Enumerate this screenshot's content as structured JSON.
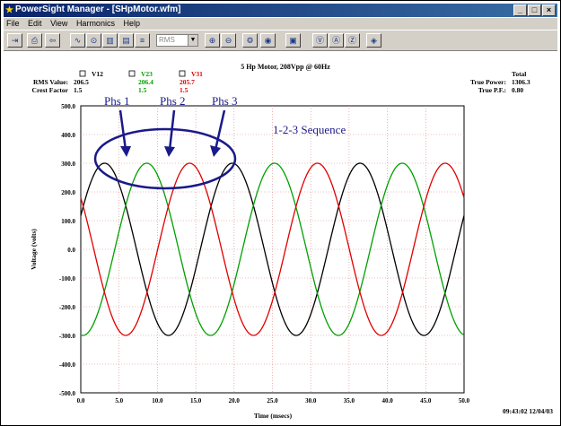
{
  "window": {
    "title": "PowerSight Manager - [SHpMotor.wfm]",
    "min": "_",
    "max": "□",
    "close": "×"
  },
  "menu": [
    "File",
    "Edit",
    "View",
    "Harmonics",
    "Help"
  ],
  "toolbar": {
    "icons": [
      "exit-icon",
      "print-icon",
      "back-arrow-icon",
      "waveform-icon",
      "phasor-icon",
      "bar-chart-icon",
      "report-icon",
      "zoom-in-icon",
      "zoom-out-icon",
      "settings-icon",
      "dial-icon",
      "save-icon",
      "v-channel-icon",
      "a-channel-icon",
      "va-channel-icon",
      "eraser-icon"
    ],
    "select_value": "RMS"
  },
  "stats": {
    "rms_label": "RMS Value:",
    "crest_label": "Crest Factor",
    "channels": [
      {
        "name": "V12",
        "rms": "206.5",
        "crest": "1.5",
        "color": "#000000"
      },
      {
        "name": "V23",
        "rms": "206.4",
        "crest": "1.5",
        "color": "#00a000"
      },
      {
        "name": "V31",
        "rms": "205.7",
        "crest": "1.5",
        "color": "#e00000"
      }
    ],
    "total_label": "Total",
    "true_power_label": "True Power:",
    "true_power_value": "1306.3",
    "true_pf_label": "True P.F.:",
    "true_pf_value": "0.80"
  },
  "annotations": {
    "phs1": "Phs 1",
    "phs2": "Phs 2",
    "phs3": "Phs 3",
    "sequence": "1-2-3 Sequence",
    "annotation_color": "#1a1a8a"
  },
  "footer": {
    "timestamp": "09:43:02 12/04/03"
  },
  "chart_data": {
    "type": "line",
    "title": "5 Hp Motor, 208Vpp @ 60Hz",
    "xlabel": "Time (msecs)",
    "ylabel": "Voltage (volts)",
    "xlim": [
      0,
      50
    ],
    "ylim": [
      -500,
      500
    ],
    "xticks": [
      "0.0",
      "5.0",
      "10.0",
      "15.0",
      "20.0",
      "25.0",
      "30.0",
      "35.0",
      "40.0",
      "45.0",
      "50.0"
    ],
    "yticks": [
      "500.0",
      "400.0",
      "300.0",
      "200.0",
      "100.0",
      "0.0",
      "-100.0",
      "-200.0",
      "-300.0",
      "-400.0",
      "-500.0"
    ],
    "grid": true,
    "series": [
      {
        "name": "V12",
        "color": "#000000",
        "amplitude": 300,
        "frequency_hz": 60,
        "peak_times_ms": [
          3.1,
          19.8,
          36.4
        ]
      },
      {
        "name": "V23",
        "color": "#00a000",
        "amplitude": 300,
        "frequency_hz": 60,
        "peak_times_ms": [
          8.6,
          25.3,
          41.9
        ]
      },
      {
        "name": "V31",
        "color": "#e00000",
        "amplitude": 300,
        "frequency_hz": 60,
        "peak_times_ms": [
          14.2,
          30.9,
          47.5
        ]
      }
    ]
  }
}
